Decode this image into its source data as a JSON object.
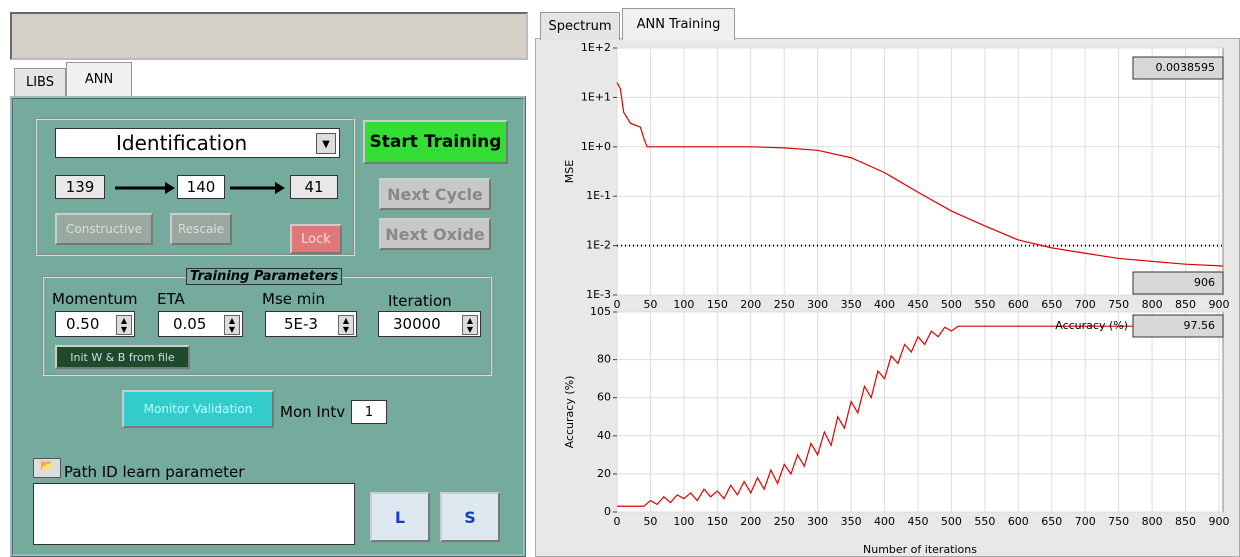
{
  "left_panel": {
    "tabs": [
      "LIBS",
      "ANN"
    ],
    "mode": "Identification",
    "start_button": "Start Training",
    "layers": [
      "139",
      "140",
      "41"
    ],
    "buttons": {
      "constructive": "Constructive",
      "rescale": "Rescale",
      "lock": "Lock",
      "next_cycle": "Next Cycle",
      "next_oxide": "Next Oxide",
      "init": "Init W & B from file",
      "monitor": "Monitor Validation"
    },
    "params_title": "Training Parameters",
    "params": [
      {
        "label": "Momentum",
        "value": "0.50"
      },
      {
        "label": "ETA",
        "value": "0.05"
      },
      {
        "label": "Mse min",
        "value": "5E-3"
      },
      {
        "label": "Iteration",
        "value": "30000"
      }
    ],
    "mon_label": "Mon Intv",
    "mon_value": "1",
    "path_label": "Path ID learn parameter",
    "icons": [
      "L",
      "S"
    ]
  },
  "right_tabs": [
    "Spectrum",
    "ANN Training"
  ],
  "chart_data": [
    {
      "type": "line",
      "ylabel": "MSE",
      "log_y": true,
      "grid": true,
      "x": [
        0,
        5,
        10,
        20,
        35,
        40,
        45,
        50,
        100,
        200,
        250,
        300,
        350,
        400,
        450,
        500,
        550,
        600,
        650,
        700,
        750,
        800,
        850,
        906
      ],
      "series": [
        {
          "color": "#e00000",
          "values": [
            20,
            15,
            5,
            3,
            2.5,
            1.5,
            1.0,
            1.0,
            1,
            1,
            0.95,
            0.85,
            0.6,
            0.3,
            0.12,
            0.05,
            0.025,
            0.013,
            0.009,
            0.007,
            0.0055,
            0.0048,
            0.0042,
            0.0038595
          ]
        }
      ],
      "threshold": 0.01,
      "xlim": [
        0,
        906
      ],
      "ylim": [
        0.001,
        100
      ],
      "xticks": [
        0,
        50,
        100,
        150,
        200,
        250,
        300,
        350,
        400,
        450,
        500,
        550,
        600,
        650,
        700,
        750,
        800,
        850,
        900
      ],
      "yticks": [
        {
          "value": 100,
          "label": "1E+2"
        },
        {
          "value": 10,
          "label": "1E+1"
        },
        {
          "value": 1,
          "label": "1E+0"
        },
        {
          "value": 0.1,
          "label": "1E-1"
        },
        {
          "value": 0.01,
          "label": "1E-2"
        },
        {
          "value": 0.001,
          "label": "1E-3"
        }
      ],
      "current_value": 0.0038595,
      "iteration_count": 906
    },
    {
      "type": "line",
      "ylabel": "Accuracy (%)",
      "xlabel": "Number of iterations",
      "grid": true,
      "x": [
        0,
        10,
        20,
        30,
        40,
        50,
        60,
        70,
        80,
        90,
        100,
        110,
        120,
        130,
        140,
        150,
        160,
        170,
        180,
        190,
        200,
        210,
        220,
        230,
        240,
        250,
        260,
        270,
        280,
        290,
        300,
        310,
        320,
        330,
        340,
        350,
        360,
        370,
        380,
        390,
        400,
        410,
        420,
        430,
        440,
        450,
        460,
        470,
        480,
        490,
        500,
        510,
        600,
        700,
        800,
        906
      ],
      "series": [
        {
          "color": "#e00000",
          "values": [
            3,
            3,
            3,
            3,
            3,
            6,
            4,
            8,
            5,
            9,
            7,
            10,
            6,
            12,
            8,
            11,
            7,
            14,
            9,
            16,
            10,
            18,
            12,
            22,
            15,
            25,
            20,
            30,
            24,
            36,
            30,
            42,
            35,
            50,
            44,
            58,
            52,
            66,
            60,
            74,
            70,
            82,
            78,
            88,
            84,
            92,
            88,
            95,
            92,
            97,
            95,
            97.56,
            97.56,
            97.56,
            97.56,
            97.56
          ]
        }
      ],
      "xlim": [
        0,
        906
      ],
      "ylim": [
        0,
        105
      ],
      "xticks": [
        0,
        50,
        100,
        150,
        200,
        250,
        300,
        350,
        400,
        450,
        500,
        550,
        600,
        650,
        700,
        750,
        800,
        850,
        900
      ],
      "yticks": [
        0,
        20,
        40,
        60,
        80,
        105
      ],
      "readout_label": "Accuracy (%)",
      "readout": 97.56
    }
  ]
}
